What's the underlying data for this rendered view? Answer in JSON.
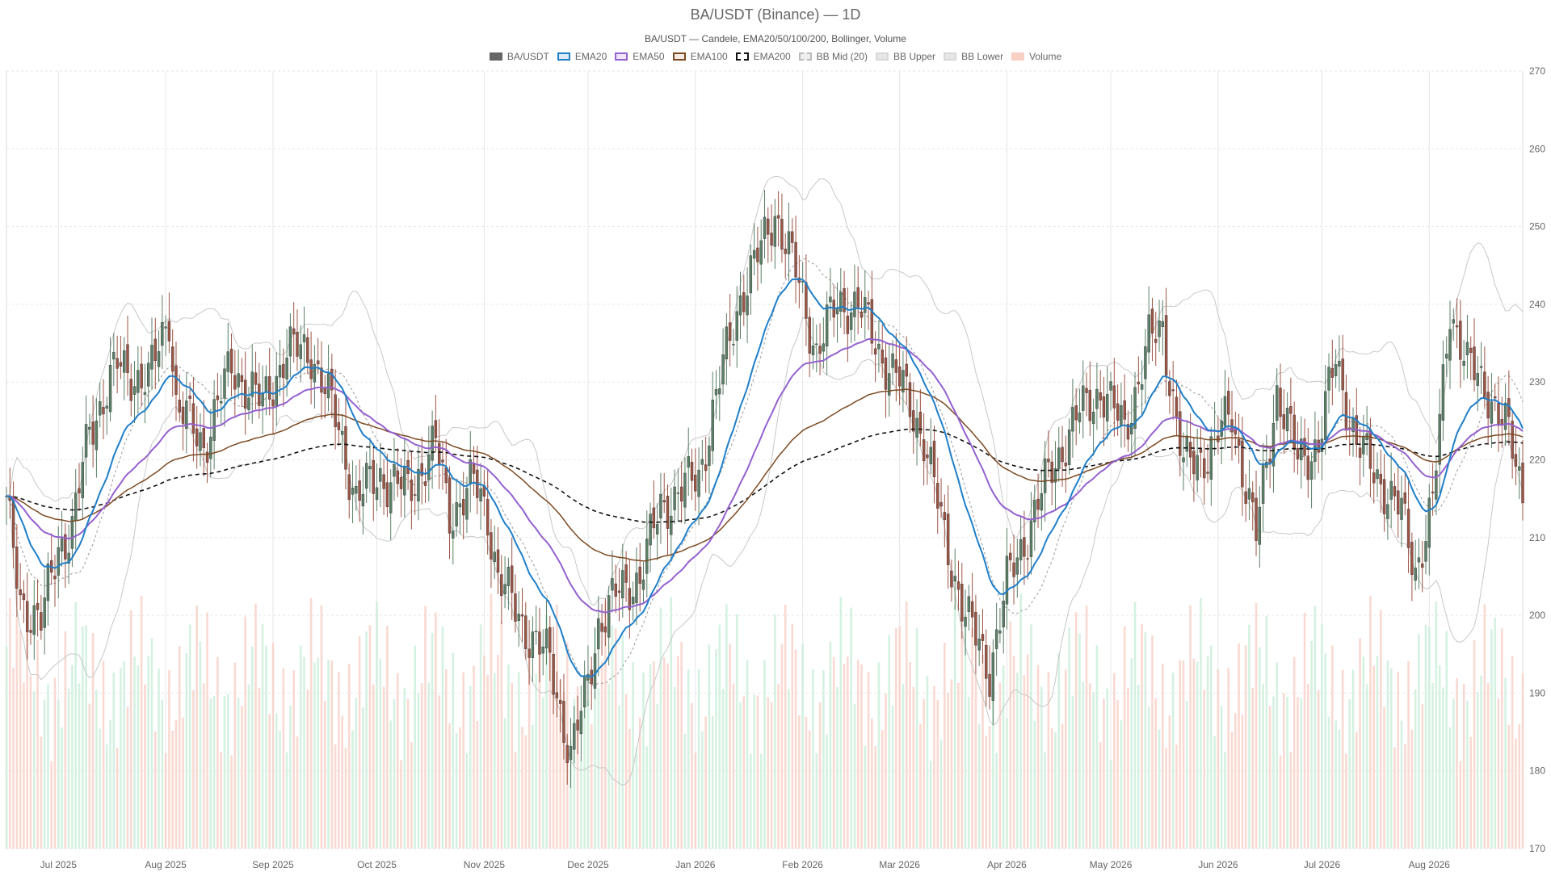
{
  "title": "BA/USDT (Binance) — 1D",
  "subtitle": "BA/USDT — Candele, EMA20/50/100/200, Bollinger, Volume",
  "colors": {
    "up": "#5b7f66",
    "down": "#9c5444",
    "up_volume": "#c9eed9",
    "down_volume": "#f7cfc5",
    "ema20": "#1f7fc9",
    "ema50": "#9461cf",
    "ema100": "#7b4a22",
    "ema200": "#111111",
    "bb_mid": "#999999",
    "bb_band": "#c8c8c8",
    "grid": "#e6e6e6"
  },
  "legend": [
    {
      "label": "BA/USDT",
      "swatch": "candle"
    },
    {
      "label": "EMA20",
      "swatch": "ema20"
    },
    {
      "label": "EMA50",
      "swatch": "ema50"
    },
    {
      "label": "EMA100",
      "swatch": "ema100"
    },
    {
      "label": "EMA200",
      "swatch": "ema200"
    },
    {
      "label": "BB Mid (20)",
      "swatch": "bbmid"
    },
    {
      "label": "BB Upper",
      "swatch": "bbupper"
    },
    {
      "label": "BB Lower",
      "swatch": "bblower"
    },
    {
      "label": "Volume",
      "swatch": "volume"
    }
  ],
  "chart_data": {
    "type": "candlestick",
    "grid": true,
    "legend_position": "top-center",
    "y_axis": {
      "side": "right",
      "min": 170,
      "max": 270,
      "ticks": [
        170,
        180,
        190,
        200,
        210,
        220,
        230,
        240,
        250,
        260,
        270
      ]
    },
    "x_axis": {
      "start": "2025-06-16",
      "end": "2026-08-28",
      "ticks": [
        {
          "date": "2025-07-01",
          "label": "Jul 2025"
        },
        {
          "date": "2025-08-01",
          "label": "Aug 2025"
        },
        {
          "date": "2025-09-01",
          "label": "Sep 2025"
        },
        {
          "date": "2025-10-01",
          "label": "Oct 2025"
        },
        {
          "date": "2025-11-01",
          "label": "Nov 2025"
        },
        {
          "date": "2025-12-01",
          "label": "Dec 2025"
        },
        {
          "date": "2026-01-01",
          "label": "Jan 2026"
        },
        {
          "date": "2026-02-01",
          "label": "Feb 2026"
        },
        {
          "date": "2026-03-01",
          "label": "Mar 2026"
        },
        {
          "date": "2026-04-01",
          "label": "Apr 2026"
        },
        {
          "date": "2026-05-01",
          "label": "May 2026"
        },
        {
          "date": "2026-06-01",
          "label": "Jun 2026"
        },
        {
          "date": "2026-07-01",
          "label": "Jul 2026"
        },
        {
          "date": "2026-08-01",
          "label": "Aug 2026"
        }
      ]
    },
    "price_path": [
      {
        "date": "2025-06-16",
        "close": 214
      },
      {
        "date": "2025-06-20",
        "close": 202
      },
      {
        "date": "2025-06-26",
        "close": 199
      },
      {
        "date": "2025-07-01",
        "close": 209
      },
      {
        "date": "2025-07-05",
        "close": 211
      },
      {
        "date": "2025-07-10",
        "close": 224
      },
      {
        "date": "2025-07-18",
        "close": 232
      },
      {
        "date": "2025-07-27",
        "close": 230
      },
      {
        "date": "2025-08-02",
        "close": 239
      },
      {
        "date": "2025-08-04",
        "close": 227
      },
      {
        "date": "2025-08-12",
        "close": 222
      },
      {
        "date": "2025-08-20",
        "close": 232
      },
      {
        "date": "2025-08-29",
        "close": 227
      },
      {
        "date": "2025-09-05",
        "close": 234
      },
      {
        "date": "2025-09-12",
        "close": 234
      },
      {
        "date": "2025-09-20",
        "close": 224
      },
      {
        "date": "2025-09-25",
        "close": 215
      },
      {
        "date": "2025-10-02",
        "close": 218
      },
      {
        "date": "2025-10-10",
        "close": 216
      },
      {
        "date": "2025-10-18",
        "close": 222
      },
      {
        "date": "2025-10-22",
        "close": 213
      },
      {
        "date": "2025-10-29",
        "close": 217
      },
      {
        "date": "2025-11-02",
        "close": 213
      },
      {
        "date": "2025-11-05",
        "close": 205
      },
      {
        "date": "2025-11-12",
        "close": 199
      },
      {
        "date": "2025-11-20",
        "close": 194
      },
      {
        "date": "2025-11-26",
        "close": 182
      },
      {
        "date": "2025-11-30",
        "close": 189
      },
      {
        "date": "2025-12-04",
        "close": 199
      },
      {
        "date": "2025-12-10",
        "close": 203
      },
      {
        "date": "2025-12-16",
        "close": 205
      },
      {
        "date": "2025-12-22",
        "close": 214
      },
      {
        "date": "2025-12-28",
        "close": 216
      },
      {
        "date": "2026-01-02",
        "close": 218
      },
      {
        "date": "2026-01-08",
        "close": 230
      },
      {
        "date": "2026-01-14",
        "close": 241
      },
      {
        "date": "2026-01-20",
        "close": 247
      },
      {
        "date": "2026-01-24",
        "close": 252
      },
      {
        "date": "2026-01-30",
        "close": 244
      },
      {
        "date": "2026-02-05",
        "close": 234
      },
      {
        "date": "2026-02-11",
        "close": 240
      },
      {
        "date": "2026-02-17",
        "close": 240
      },
      {
        "date": "2026-02-23",
        "close": 234
      },
      {
        "date": "2026-03-01",
        "close": 230
      },
      {
        "date": "2026-03-08",
        "close": 223
      },
      {
        "date": "2026-03-14",
        "close": 210
      },
      {
        "date": "2026-03-20",
        "close": 200
      },
      {
        "date": "2026-03-27",
        "close": 193
      },
      {
        "date": "2026-04-01",
        "close": 204
      },
      {
        "date": "2026-04-08",
        "close": 212
      },
      {
        "date": "2026-04-14",
        "close": 219
      },
      {
        "date": "2026-04-22",
        "close": 226
      },
      {
        "date": "2026-04-28",
        "close": 229
      },
      {
        "date": "2026-05-05",
        "close": 224
      },
      {
        "date": "2026-05-12",
        "close": 235
      },
      {
        "date": "2026-05-16",
        "close": 237
      },
      {
        "date": "2026-05-22",
        "close": 219
      },
      {
        "date": "2026-05-29",
        "close": 221
      },
      {
        "date": "2026-06-05",
        "close": 226
      },
      {
        "date": "2026-06-12",
        "close": 210
      },
      {
        "date": "2026-06-18",
        "close": 229
      },
      {
        "date": "2026-06-24",
        "close": 220
      },
      {
        "date": "2026-06-30",
        "close": 222
      },
      {
        "date": "2026-07-05",
        "close": 233
      },
      {
        "date": "2026-07-11",
        "close": 222
      },
      {
        "date": "2026-07-17",
        "close": 218
      },
      {
        "date": "2026-07-24",
        "close": 213
      },
      {
        "date": "2026-07-28",
        "close": 206
      },
      {
        "date": "2026-08-02",
        "close": 214
      },
      {
        "date": "2026-08-07",
        "close": 240
      },
      {
        "date": "2026-08-12",
        "close": 232
      },
      {
        "date": "2026-08-18",
        "close": 229
      },
      {
        "date": "2026-08-24",
        "close": 223
      },
      {
        "date": "2026-08-28",
        "close": 216
      }
    ],
    "volume": {
      "scale_max": 100,
      "start": 26,
      "level": 22,
      "swing": 6
    }
  }
}
